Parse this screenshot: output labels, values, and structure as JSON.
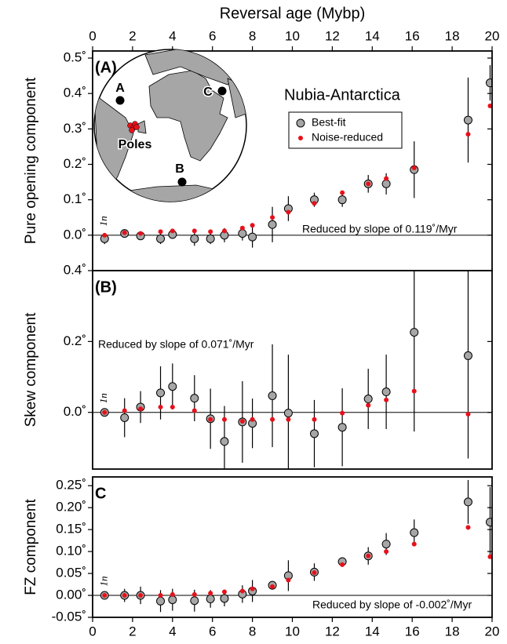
{
  "chart_data": [
    {
      "type": "scatter",
      "panel_label": "(A)",
      "title": "Nubia-Antarctica",
      "xlabel": "Reversal age (Mybp)",
      "ylabel": "Pure opening component",
      "annotation": "Reduced by slope of 0.119˚/Myr",
      "chron_label": "1n",
      "inset_labels": [
        "A",
        "B",
        "C",
        "Poles"
      ],
      "x": [
        0.6,
        1.6,
        2.4,
        3.4,
        4.0,
        5.1,
        5.9,
        6.6,
        7.5,
        8.0,
        9.0,
        9.8,
        11.1,
        12.5,
        13.8,
        14.7,
        16.1,
        18.8,
        19.9
      ],
      "xlim": [
        0,
        20
      ],
      "xticks": [
        0,
        2,
        4,
        6,
        8,
        10,
        12,
        14,
        16,
        18,
        20
      ],
      "ylim": [
        -0.1,
        0.52
      ],
      "yticks": [
        {
          "value": 0,
          "label": "0.0˚"
        },
        {
          "value": 0.1,
          "label": "0.1˚"
        },
        {
          "value": 0.2,
          "label": "0.2˚"
        },
        {
          "value": 0.3,
          "label": "0.3˚"
        },
        {
          "value": 0.4,
          "label": "0.4˚"
        },
        {
          "value": 0.5,
          "label": "0.5˚"
        }
      ],
      "series": [
        {
          "name": "Best-fit",
          "color": "#a6a6a6",
          "values": [
            -0.01,
            0.005,
            -0.002,
            -0.01,
            0.002,
            -0.01,
            -0.01,
            0.0,
            0.005,
            -0.005,
            0.03,
            0.075,
            0.1,
            0.1,
            0.145,
            0.145,
            0.185,
            0.325,
            0.43
          ],
          "errors": [
            0.015,
            0.007,
            0.01,
            0.015,
            0.012,
            0.02,
            0.015,
            0.02,
            0.02,
            0.03,
            0.05,
            0.035,
            0.02,
            0.02,
            0.025,
            0.03,
            0.08,
            0.12,
            0.05
          ]
        },
        {
          "name": "Noise-reduced",
          "color": "#e8101a",
          "values": [
            0.0,
            0.007,
            0.005,
            0.01,
            0.012,
            0.012,
            0.01,
            0.012,
            0.02,
            0.028,
            0.05,
            0.065,
            0.09,
            0.12,
            0.145,
            0.16,
            0.19,
            0.285,
            0.365
          ]
        }
      ]
    },
    {
      "type": "scatter",
      "panel_label": "(B)",
      "ylabel": "Skew component",
      "annotation": "Reduced by slope of 0.071˚/Myr",
      "chron_label": "1n",
      "x": [
        0.6,
        1.6,
        2.4,
        3.4,
        4.0,
        5.1,
        5.9,
        6.6,
        7.5,
        8.0,
        9.0,
        9.8,
        11.1,
        12.5,
        13.8,
        14.7,
        16.1,
        18.8,
        19.9
      ],
      "xlim": [
        0,
        20
      ],
      "ylim": [
        -0.16,
        0.4
      ],
      "yticks": [
        {
          "value": 0,
          "label": "0.0˚"
        },
        {
          "value": 0.2,
          "label": "0.2˚"
        },
        {
          "value": 0.4,
          "label": "0.4˚"
        }
      ],
      "series": [
        {
          "color": "#a6a6a6",
          "values": [
            0.0,
            -0.015,
            0.015,
            0.055,
            0.073,
            0.04,
            -0.018,
            -0.082,
            -0.027,
            -0.031,
            0.047,
            -0.002,
            -0.06,
            -0.042,
            0.038,
            0.058,
            0.226,
            0.16,
            null
          ],
          "errors": [
            0.01,
            0.055,
            0.045,
            0.075,
            0.065,
            0.065,
            0.085,
            0.1,
            0.115,
            0.07,
            0.145,
            0.165,
            0.095,
            0.11,
            0.085,
            0.105,
            0.28,
            0.29,
            null
          ]
        },
        {
          "color": "#e8101a",
          "values": [
            0.0,
            0.005,
            0.01,
            0.015,
            0.015,
            0.005,
            -0.02,
            -0.02,
            -0.025,
            -0.02,
            -0.02,
            -0.02,
            -0.02,
            -0.002,
            0.02,
            0.035,
            0.06,
            -0.005,
            null
          ]
        }
      ]
    },
    {
      "type": "scatter",
      "panel_label": "C",
      "ylabel": "FZ component",
      "annotation": "Reduced by slope of -0.002˚/Myr",
      "chron_label": "1n",
      "x": [
        0.6,
        1.6,
        2.4,
        3.4,
        4.0,
        5.1,
        5.9,
        6.6,
        7.5,
        8.0,
        9.0,
        9.8,
        11.1,
        12.5,
        13.8,
        14.7,
        16.1,
        18.8,
        19.9
      ],
      "xlim": [
        0,
        20
      ],
      "xticks": [
        0,
        2,
        4,
        6,
        8,
        10,
        12,
        14,
        16,
        18,
        20
      ],
      "ylim": [
        -0.05,
        0.27
      ],
      "yticks": [
        {
          "value": -0.05,
          "label": "-0.05˚"
        },
        {
          "value": 0,
          "label": "0.00˚"
        },
        {
          "value": 0.05,
          "label": "0.05˚"
        },
        {
          "value": 0.1,
          "label": "0.10˚"
        },
        {
          "value": 0.15,
          "label": "0.15˚"
        },
        {
          "value": 0.2,
          "label": "0.20˚"
        },
        {
          "value": 0.25,
          "label": "0.25˚"
        }
      ],
      "series": [
        {
          "color": "#a6a6a6",
          "values": [
            0.0,
            0.0,
            0.0,
            -0.013,
            -0.01,
            -0.012,
            -0.008,
            -0.007,
            0.003,
            0.01,
            0.023,
            0.045,
            0.053,
            0.077,
            0.09,
            0.117,
            0.143,
            0.213,
            0.167
          ],
          "errors": [
            0.005,
            0.015,
            0.02,
            0.025,
            0.025,
            0.025,
            0.02,
            0.018,
            0.02,
            0.025,
            0.01,
            0.035,
            0.02,
            0.01,
            0.02,
            0.025,
            0.03,
            0.05,
            0.08
          ]
        },
        {
          "color": "#e8101a",
          "values": [
            0.0,
            0.0,
            0.0,
            0.0,
            0.002,
            0.002,
            0.005,
            0.008,
            0.01,
            0.015,
            0.02,
            0.035,
            0.052,
            0.07,
            0.09,
            0.1,
            0.117,
            0.155,
            0.088
          ]
        }
      ]
    }
  ]
}
